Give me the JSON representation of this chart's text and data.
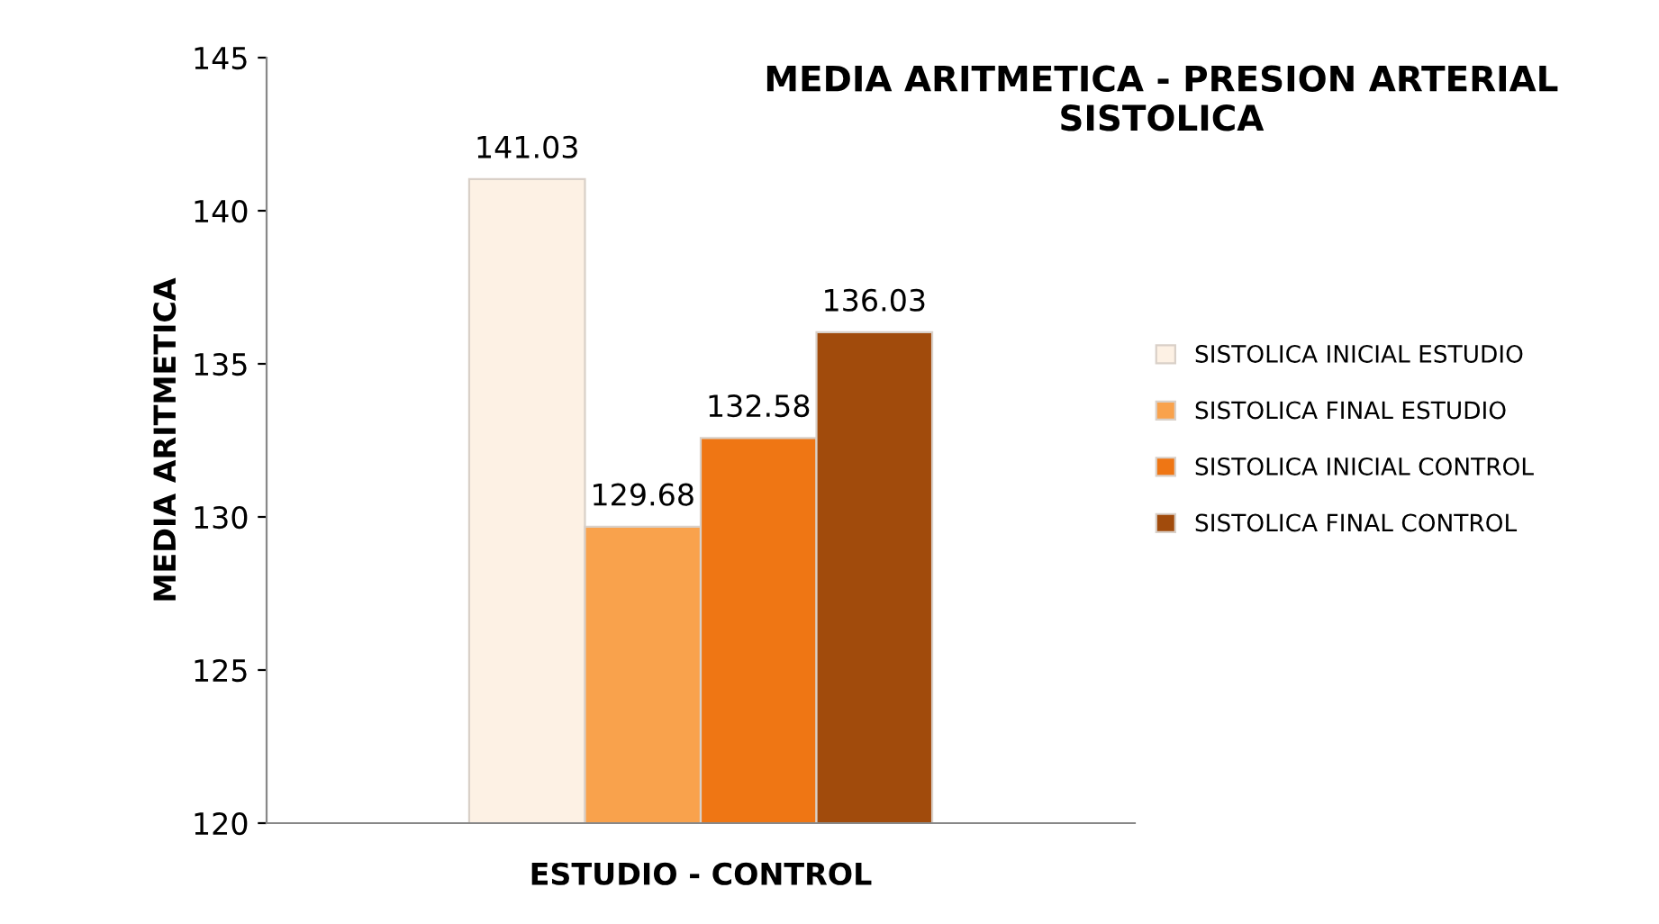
{
  "chart_data": {
    "type": "bar",
    "title": "MEDIA ARITMETICA - PRESION ARTERIAL SISTOLICA",
    "xlabel": "ESTUDIO - CONTROL",
    "ylabel": "MEDIA ARITMETICA",
    "categories": [
      null
    ],
    "series": [
      {
        "name": "SISTOLICA INICIAL ESTUDIO",
        "color": "#fdf1e4",
        "values": [
          141.03
        ]
      },
      {
        "name": "SISTOLICA FINAL ESTUDIO",
        "color": "#f9a24c",
        "values": [
          129.68
        ]
      },
      {
        "name": "SISTOLICA INICIAL CONTROL",
        "color": "#ef7614",
        "values": [
          132.58
        ]
      },
      {
        "name": "SISTOLICA FINAL CONTROL",
        "color": "#a14b0c",
        "values": [
          136.03
        ]
      }
    ],
    "ylim": [
      120,
      145
    ],
    "yticks": [
      120,
      125,
      130,
      135,
      140,
      145
    ],
    "grid": false,
    "legend": "right",
    "data_labels": true
  }
}
